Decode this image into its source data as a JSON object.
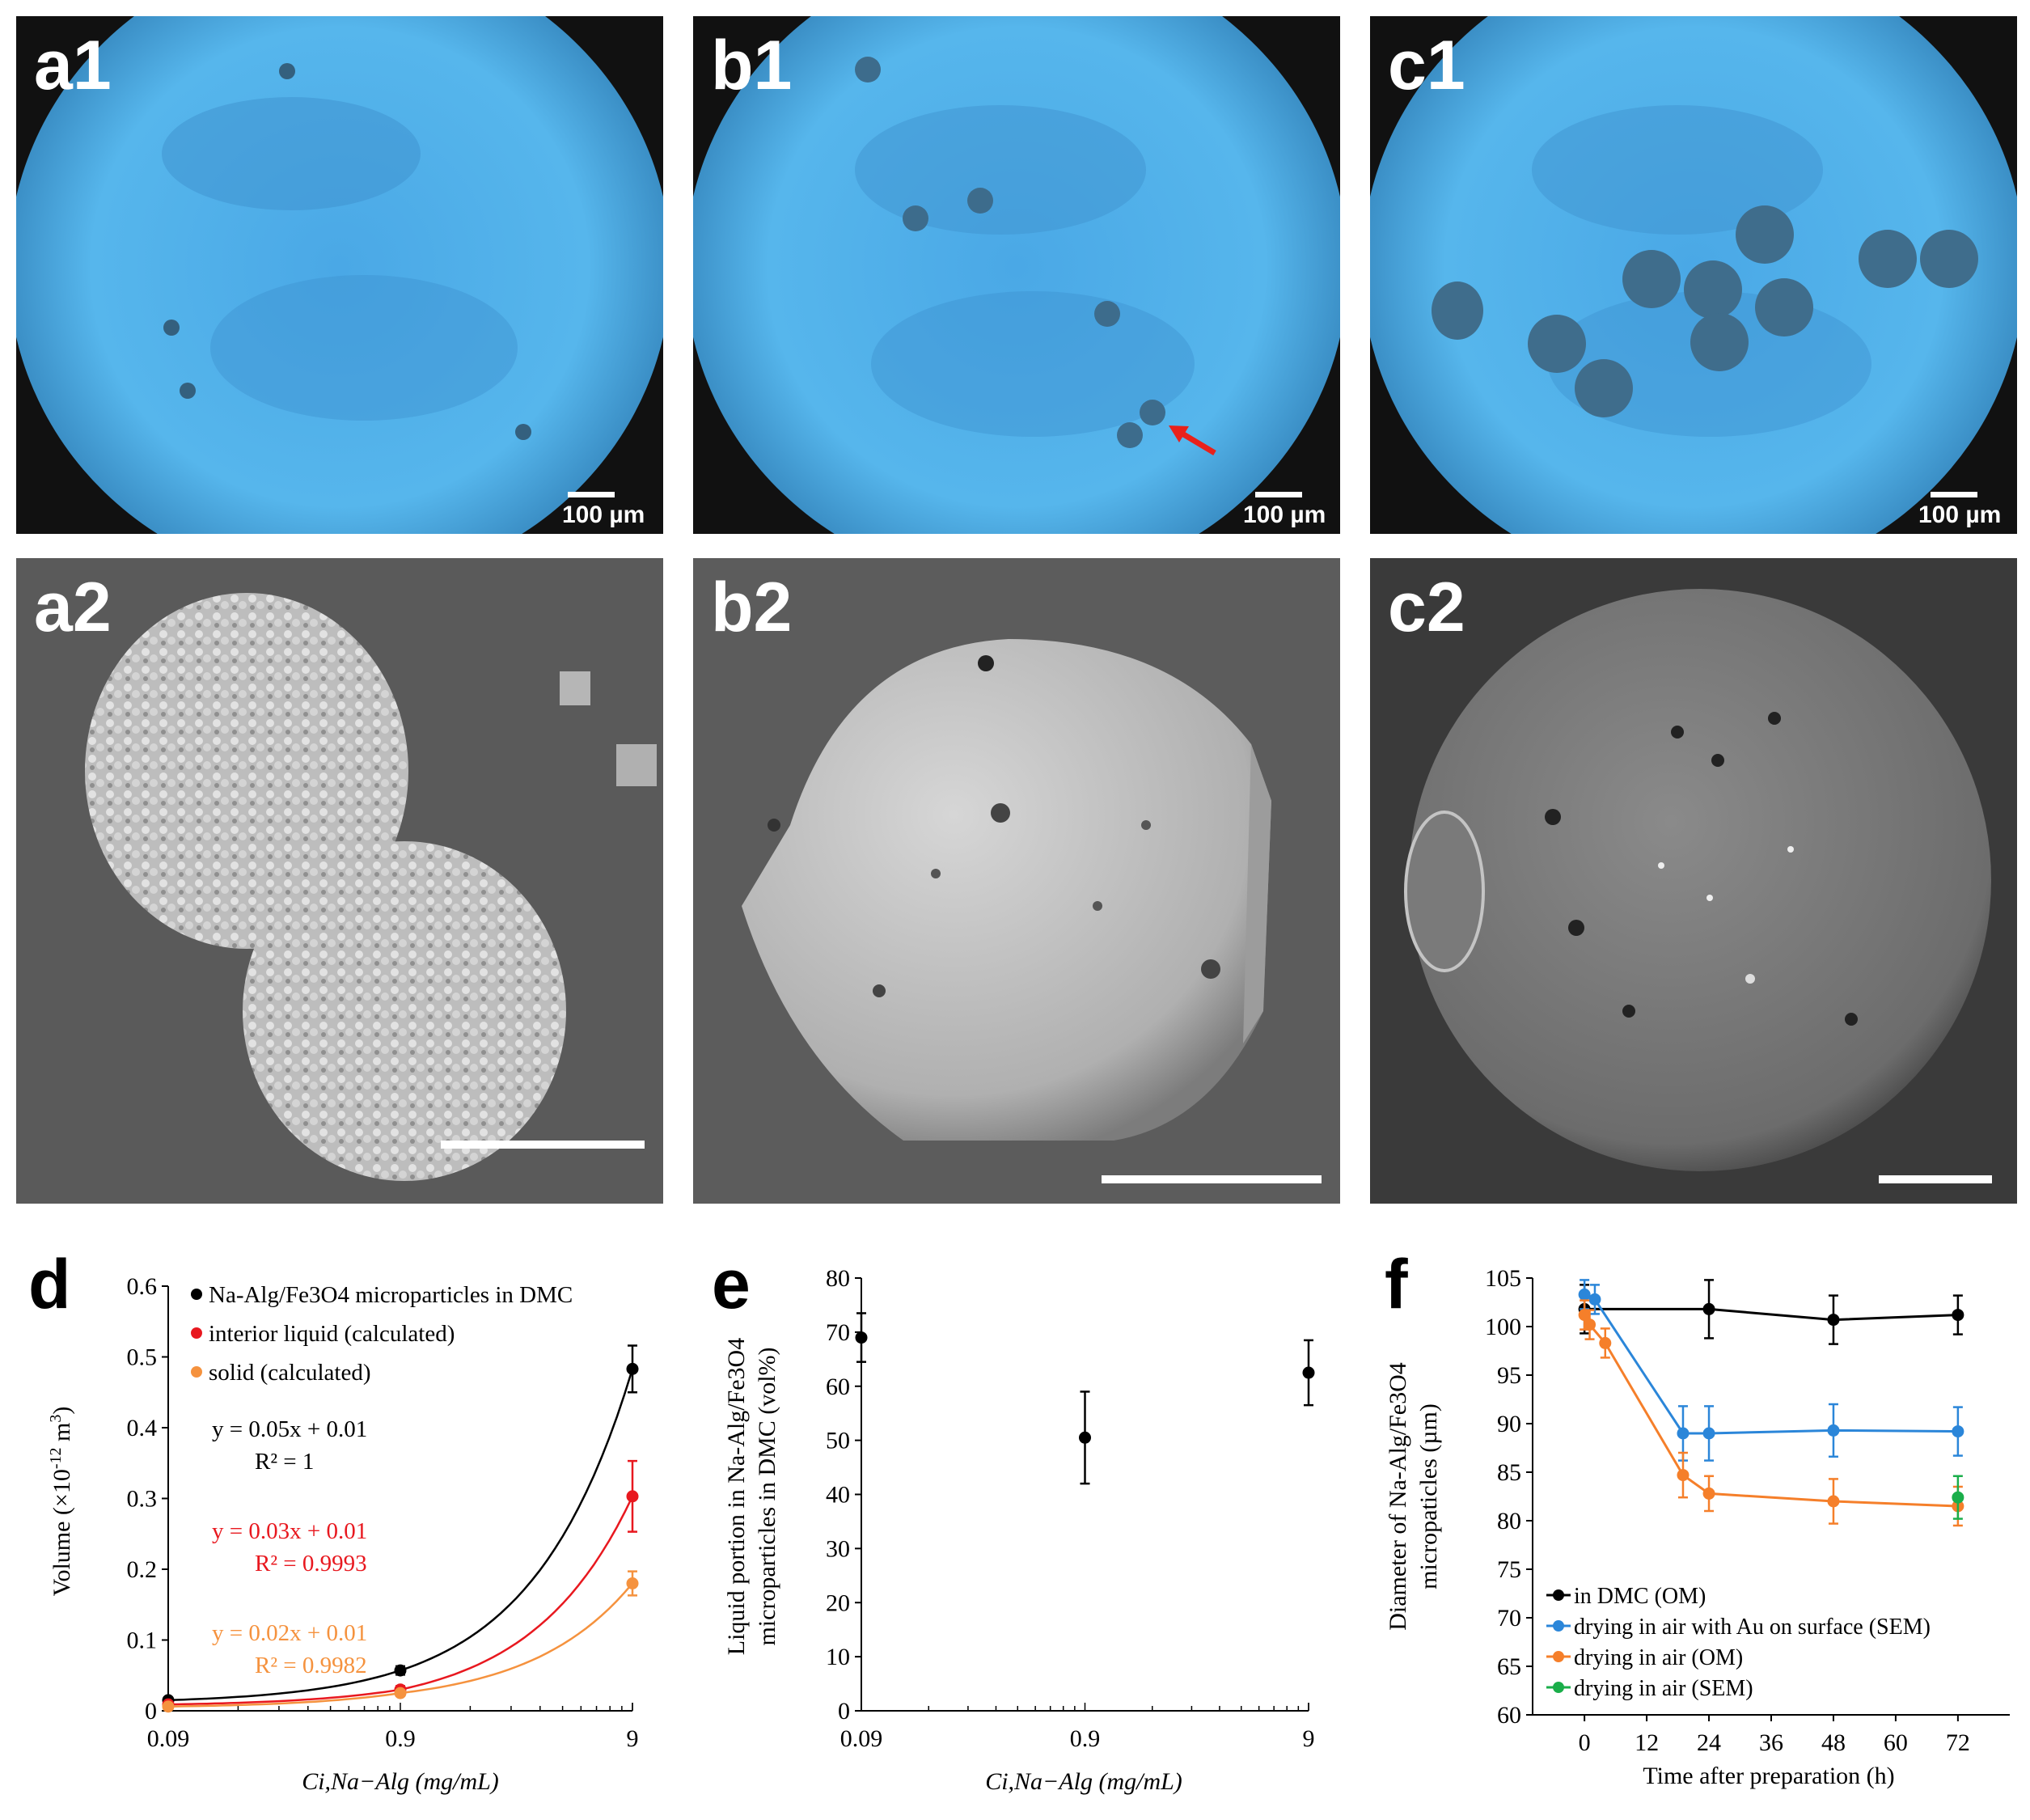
{
  "panels": {
    "a1": {
      "label": "a1",
      "scale": "100 µm"
    },
    "b1": {
      "label": "b1",
      "scale": "100 µm"
    },
    "c1": {
      "label": "c1",
      "scale": "100 µm"
    },
    "a2": {
      "label": "a2"
    },
    "b2": {
      "label": "b2"
    },
    "c2": {
      "label": "c2"
    }
  },
  "chart_data": [
    {
      "panel": "d",
      "type": "line",
      "xlabel": "Ci,Na−Alg (mg/mL)",
      "ylabel": "Volume (×10-12 m3)",
      "xscale": "log",
      "x_ticks": [
        "0.09",
        "0.9",
        "9"
      ],
      "y_ticks": [
        "0",
        "0.1",
        "0.2",
        "0.3",
        "0.4",
        "0.5",
        "0.6"
      ],
      "ylim": [
        0,
        0.6
      ],
      "xlim": [
        0.09,
        9
      ],
      "series": [
        {
          "name": "Na-Alg/Fe3O4 microparticles in DMC",
          "color": "#000000",
          "x": [
            0.09,
            0.9,
            9
          ],
          "y": [
            0.015,
            0.057,
            0.483
          ],
          "err": [
            0.004,
            0.006,
            0.033
          ],
          "equation": "y = 0.05x + 0.01",
          "r2": "R² = 1"
        },
        {
          "name": "interior liquid (calculated)",
          "color": "#e8181f",
          "x": [
            0.09,
            0.9,
            9
          ],
          "y": [
            0.009,
            0.03,
            0.303
          ],
          "err": [
            0.003,
            0.005,
            0.05
          ],
          "equation": "y = 0.03x + 0.01",
          "r2": "R² = 0.9993"
        },
        {
          "name": "solid (calculated)",
          "color": "#f5923e",
          "x": [
            0.09,
            0.9,
            9
          ],
          "y": [
            0.006,
            0.025,
            0.18
          ],
          "err": [
            0.002,
            0.004,
            0.017
          ],
          "equation": "y = 0.02x + 0.01",
          "r2": "R² = 0.9982"
        }
      ]
    },
    {
      "panel": "e",
      "type": "scatter",
      "xlabel": "Ci,Na−Alg (mg/mL)",
      "ylabel_line1": "Liquid portion in Na-Alg/Fe3O4",
      "ylabel_line2": "microparticles in DMC (vol%)",
      "xscale": "log",
      "x_ticks": [
        "0.09",
        "0.9",
        "9"
      ],
      "y_ticks": [
        "0",
        "10",
        "20",
        "30",
        "40",
        "50",
        "60",
        "70",
        "80"
      ],
      "ylim": [
        0,
        80
      ],
      "xlim": [
        0.09,
        9
      ],
      "series": [
        {
          "color": "#000000",
          "x": [
            0.09,
            0.9,
            9
          ],
          "y": [
            69,
            50.5,
            62.5
          ],
          "err": [
            4.5,
            8.5,
            6
          ]
        }
      ]
    },
    {
      "panel": "f",
      "type": "line",
      "xlabel": "Time after preparation (h)",
      "ylabel_line1": "Diameter of Na-Alg/Fe3O4",
      "ylabel_line2": "micropaticles (µm)",
      "x_ticks": [
        "0",
        "12",
        "24",
        "36",
        "48",
        "60",
        "72"
      ],
      "y_ticks": [
        "60",
        "65",
        "70",
        "75",
        "80",
        "85",
        "90",
        "95",
        "100",
        "105"
      ],
      "ylim": [
        60,
        105
      ],
      "xlim": [
        -10,
        82
      ],
      "series": [
        {
          "name": "in DMC (OM)",
          "color": "#000000",
          "x": [
            0,
            24,
            48,
            72
          ],
          "y": [
            101.8,
            101.8,
            100.7,
            101.2
          ],
          "err": [
            2.5,
            3,
            2.5,
            2
          ]
        },
        {
          "name": "drying in air with Au on surface (SEM)",
          "color": "#2b86d9",
          "x": [
            0,
            2,
            19,
            24,
            48,
            72
          ],
          "y": [
            103.3,
            102.8,
            89,
            89,
            89.3,
            89.2
          ],
          "err": [
            1.5,
            1.5,
            2.8,
            2.8,
            2.7,
            2.5
          ]
        },
        {
          "name": "drying in air (OM)",
          "color": "#f57f2a",
          "x": [
            0,
            1,
            4,
            19,
            24,
            48,
            72
          ],
          "y": [
            101.2,
            100.2,
            98.3,
            84.7,
            82.8,
            82,
            81.5
          ],
          "err": [
            1.5,
            1.5,
            1.5,
            2.3,
            1.8,
            2.3,
            2
          ]
        },
        {
          "name": "drying in air (SEM)",
          "color": "#1aae4a",
          "x": [
            72
          ],
          "y": [
            82.4
          ],
          "err": [
            2.2
          ]
        }
      ]
    }
  ],
  "chart_labels": {
    "d": "d",
    "e": "e",
    "f": "f"
  }
}
